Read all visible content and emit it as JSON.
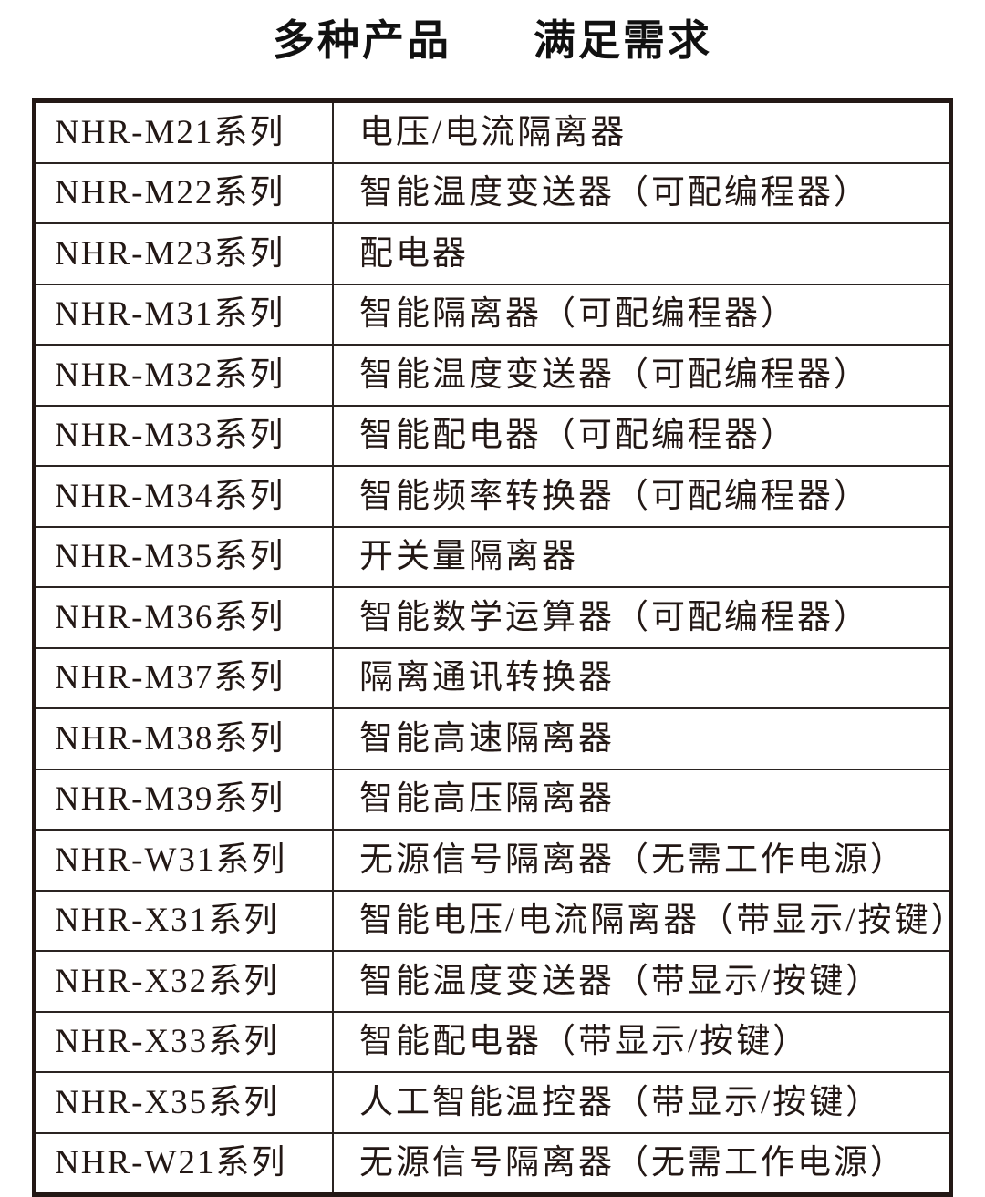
{
  "title": {
    "part1": "多种产品",
    "part2": "满足需求"
  },
  "colors": {
    "text": "#231815",
    "border": "#231815",
    "background": "#ffffff"
  },
  "table": {
    "rows": [
      {
        "series": "NHR-M21系列",
        "description": "电压/电流隔离器"
      },
      {
        "series": "NHR-M22系列",
        "description": "智能温度变送器（可配编程器）"
      },
      {
        "series": "NHR-M23系列",
        "description": "配电器"
      },
      {
        "series": "NHR-M31系列",
        "description": "智能隔离器（可配编程器）"
      },
      {
        "series": "NHR-M32系列",
        "description": "智能温度变送器（可配编程器）"
      },
      {
        "series": "NHR-M33系列",
        "description": "智能配电器（可配编程器）"
      },
      {
        "series": "NHR-M34系列",
        "description": "智能频率转换器（可配编程器）"
      },
      {
        "series": "NHR-M35系列",
        "description": "开关量隔离器"
      },
      {
        "series": "NHR-M36系列",
        "description": "智能数学运算器（可配编程器）"
      },
      {
        "series": "NHR-M37系列",
        "description": "隔离通讯转换器"
      },
      {
        "series": "NHR-M38系列",
        "description": "智能高速隔离器"
      },
      {
        "series": "NHR-M39系列",
        "description": "智能高压隔离器"
      },
      {
        "series": "NHR-W31系列",
        "description": "无源信号隔离器（无需工作电源）"
      },
      {
        "series": "NHR-X31系列",
        "description": "智能电压/电流隔离器（带显示/按键）"
      },
      {
        "series": "NHR-X32系列",
        "description": "智能温度变送器（带显示/按键）"
      },
      {
        "series": "NHR-X33系列",
        "description": "智能配电器（带显示/按键）"
      },
      {
        "series": "NHR-X35系列",
        "description": "人工智能温控器（带显示/按键）"
      },
      {
        "series": "NHR-W21系列",
        "description": "无源信号隔离器（无需工作电源）"
      }
    ]
  }
}
